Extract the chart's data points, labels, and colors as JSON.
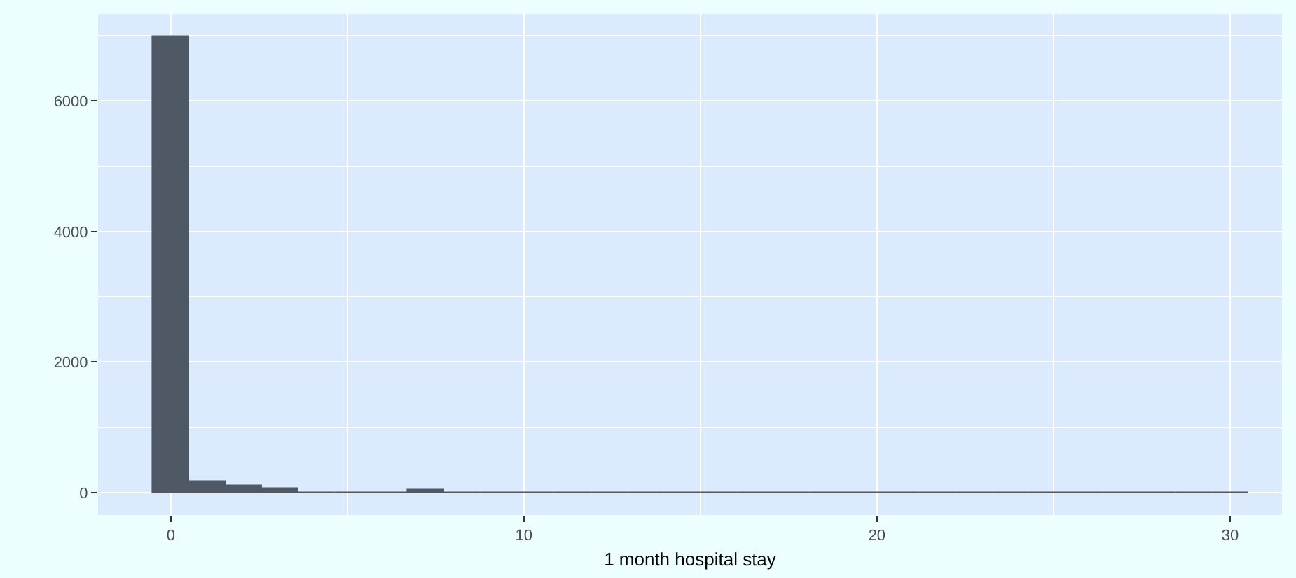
{
  "chart_data": {
    "type": "histogram",
    "xlabel": "1 month hospital stay",
    "bins": [
      -0.52,
      0.52,
      1.55,
      2.59,
      3.62,
      4.66,
      5.69,
      6.72,
      7.76,
      8.79,
      9.83,
      10.86,
      11.9,
      12.93,
      13.97,
      15.0,
      16.03,
      17.07,
      18.1,
      19.14,
      20.17,
      21.21,
      22.24,
      23.28,
      24.31,
      25.34,
      26.38,
      27.41,
      28.45,
      29.48,
      30.52
    ],
    "values": [
      6990,
      170,
      110,
      60,
      0,
      0,
      0,
      50,
      0,
      0,
      0,
      0,
      0,
      0,
      0,
      0,
      0,
      0,
      0,
      0,
      0,
      0,
      0,
      0,
      0,
      0,
      0,
      0,
      0,
      0
    ],
    "color": "#4f5966",
    "xlim": [
      -2.06,
      31.47
    ],
    "xticks": [
      0,
      10,
      20,
      30
    ],
    "ylim": [
      -344,
      7333
    ],
    "yticks": [
      0,
      2000,
      4000,
      6000
    ],
    "grid": true
  }
}
